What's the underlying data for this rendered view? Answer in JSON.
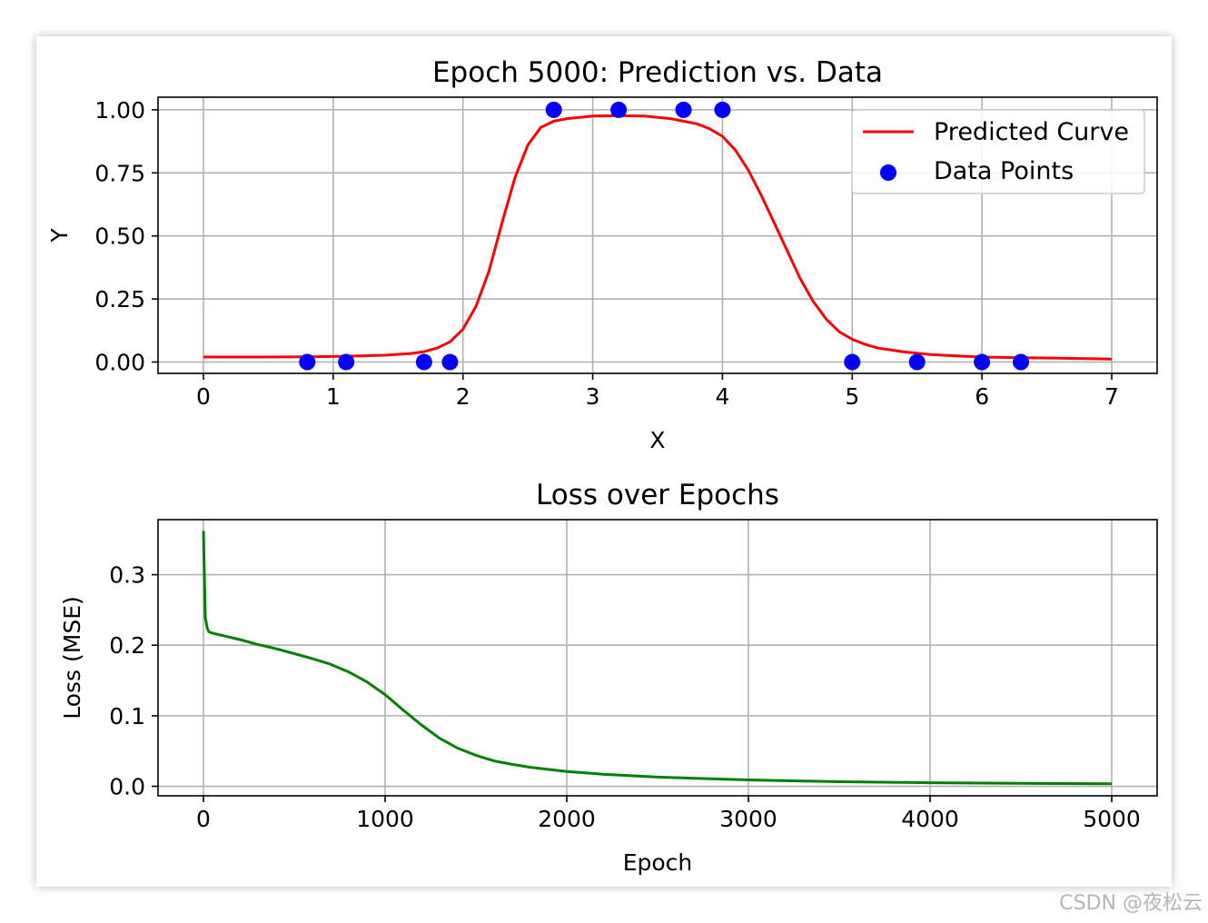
{
  "watermark": "CSDN @夜松云",
  "chart_data": [
    {
      "type": "line",
      "title": "Epoch 5000: Prediction vs. Data",
      "xlabel": "X",
      "ylabel": "Y",
      "xlim": [
        -0.35,
        7.35
      ],
      "ylim": [
        -0.045,
        1.05
      ],
      "xticks": [
        0,
        1,
        2,
        3,
        4,
        5,
        6,
        7
      ],
      "xtick_labels": [
        "0",
        "1",
        "2",
        "3",
        "4",
        "5",
        "6",
        "7"
      ],
      "yticks": [
        0.0,
        0.25,
        0.5,
        0.75,
        1.0
      ],
      "ytick_labels": [
        "0.00",
        "0.25",
        "0.50",
        "0.75",
        "1.00"
      ],
      "grid": true,
      "legend_position": "top-right",
      "series": [
        {
          "name": "Predicted Curve",
          "kind": "line",
          "color": "#ff0000",
          "x": [
            0,
            0.5,
            0.8,
            1.0,
            1.2,
            1.4,
            1.6,
            1.7,
            1.8,
            1.9,
            2.0,
            2.1,
            2.2,
            2.3,
            2.4,
            2.5,
            2.6,
            2.7,
            2.8,
            2.9,
            3.0,
            3.2,
            3.4,
            3.6,
            3.8,
            3.9,
            4.0,
            4.1,
            4.2,
            4.3,
            4.4,
            4.5,
            4.6,
            4.7,
            4.8,
            4.9,
            5.0,
            5.1,
            5.2,
            5.4,
            5.6,
            5.8,
            6.0,
            6.3,
            6.6,
            7.0
          ],
          "y": [
            0.02,
            0.02,
            0.021,
            0.022,
            0.024,
            0.027,
            0.034,
            0.041,
            0.055,
            0.08,
            0.13,
            0.22,
            0.36,
            0.55,
            0.73,
            0.86,
            0.93,
            0.955,
            0.965,
            0.97,
            0.975,
            0.977,
            0.975,
            0.965,
            0.945,
            0.925,
            0.895,
            0.84,
            0.76,
            0.66,
            0.55,
            0.44,
            0.33,
            0.24,
            0.17,
            0.12,
            0.09,
            0.07,
            0.055,
            0.04,
            0.03,
            0.024,
            0.02,
            0.017,
            0.015,
            0.012
          ]
        },
        {
          "name": "Data Points",
          "kind": "scatter",
          "color": "#0000ff",
          "x": [
            0.8,
            1.1,
            1.7,
            1.9,
            2.7,
            3.2,
            3.7,
            4.0,
            5.0,
            5.5,
            6.0,
            6.3
          ],
          "y": [
            0,
            0,
            0,
            0,
            1,
            1,
            1,
            1,
            0,
            0,
            0,
            0
          ]
        }
      ]
    },
    {
      "type": "line",
      "title": "Loss over Epochs",
      "xlabel": "Epoch",
      "ylabel": "Loss (MSE)",
      "xlim": [
        -250,
        5250
      ],
      "ylim": [
        -0.0135,
        0.378
      ],
      "xticks": [
        0,
        1000,
        2000,
        3000,
        4000,
        5000
      ],
      "xtick_labels": [
        "0",
        "1000",
        "2000",
        "3000",
        "4000",
        "5000"
      ],
      "yticks": [
        0.0,
        0.1,
        0.2,
        0.3
      ],
      "ytick_labels": [
        "0.0",
        "0.1",
        "0.2",
        "0.3"
      ],
      "grid": true,
      "series": [
        {
          "kind": "line",
          "color": "#008000",
          "x": [
            0,
            5,
            10,
            20,
            30,
            50,
            100,
            200,
            300,
            400,
            500,
            600,
            700,
            800,
            900,
            1000,
            1100,
            1200,
            1300,
            1400,
            1500,
            1600,
            1700,
            1800,
            2000,
            2200,
            2500,
            3000,
            3500,
            4000,
            4500,
            5000
          ],
          "y": [
            0.362,
            0.3,
            0.24,
            0.225,
            0.219,
            0.217,
            0.214,
            0.208,
            0.201,
            0.195,
            0.188,
            0.181,
            0.173,
            0.162,
            0.148,
            0.13,
            0.108,
            0.087,
            0.068,
            0.054,
            0.044,
            0.036,
            0.031,
            0.027,
            0.021,
            0.017,
            0.013,
            0.009,
            0.0065,
            0.005,
            0.0042,
            0.0035
          ]
        }
      ]
    }
  ]
}
